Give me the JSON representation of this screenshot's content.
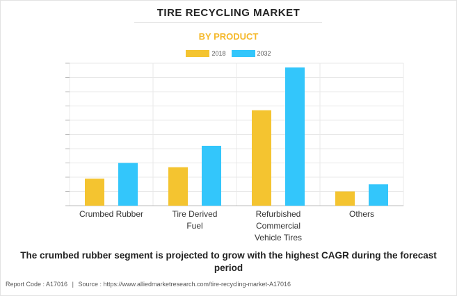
{
  "header": {
    "title": "TIRE RECYCLING MARKET",
    "subtitle": "BY PRODUCT"
  },
  "colors": {
    "series_2018": "#f4c430",
    "series_2032": "#33c6fb",
    "subtitle": "#f5b92c",
    "gridline": "#e8e8e8"
  },
  "chart_data": {
    "type": "bar",
    "categories": [
      "Crumbed Rubber",
      "Tire Derived Fuel",
      "Refurbished Commercial Vehicle Tires",
      "Others"
    ],
    "category_display": [
      [
        "Crumbed Rubber"
      ],
      [
        "Tire Derived",
        "Fuel"
      ],
      [
        "Refurbished Commercial",
        "Vehicle Tires"
      ],
      [
        "Others"
      ]
    ],
    "series": [
      {
        "name": "2018",
        "values": [
          19,
          27,
          67,
          10
        ]
      },
      {
        "name": "2032",
        "values": [
          30,
          42,
          97,
          15
        ]
      }
    ],
    "ylim": [
      0,
      100
    ],
    "y_ticks_labeled": false,
    "grid": true,
    "legend_position": "top-center"
  },
  "headline": "The crumbed rubber segment is projected to grow with the highest CAGR during the forecast period",
  "footer": {
    "report_code": "Report Code : A17016",
    "separator": "|",
    "source": "Source : https://www.alliedmarketresearch.com/tire-recycling-market-A17016"
  }
}
